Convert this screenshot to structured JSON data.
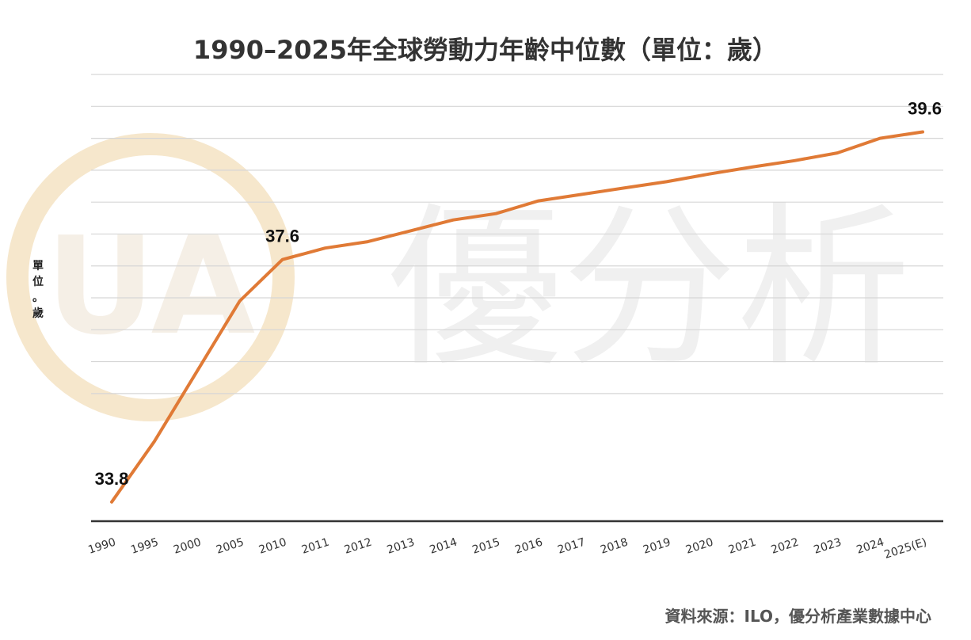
{
  "watermark": {
    "text": "優分析",
    "logo_letters": "UA"
  },
  "source_note": "資料來源：ILO，優分析產業數據中心",
  "chart_data": {
    "type": "line",
    "title": "1990–2025年全球勞動力年齡中位數（單位：歲）",
    "ylabel_chars": [
      "單",
      "位",
      "。",
      "歲"
    ],
    "xlabel": "",
    "categories": [
      "1990",
      "1995",
      "2000",
      "2005",
      "2010",
      "2011",
      "2012",
      "2013",
      "2014",
      "2015",
      "2016",
      "2017",
      "2018",
      "2019",
      "2020",
      "2021",
      "2022",
      "2023",
      "2024",
      "2025(E)"
    ],
    "series": [
      {
        "values": [
          33.8,
          34.75,
          35.85,
          36.95,
          37.6,
          37.78,
          37.88,
          38.05,
          38.22,
          38.32,
          38.52,
          38.62,
          38.72,
          38.82,
          38.94,
          39.05,
          39.15,
          39.27,
          39.5,
          39.6
        ],
        "color": "#e07a36"
      }
    ],
    "data_labels": [
      {
        "index": 0,
        "text": "33.8"
      },
      {
        "index": 4,
        "text": "37.6"
      },
      {
        "index": 19,
        "text": "39.6"
      }
    ],
    "ylim": [
      33.5,
      40.55
    ],
    "y_gridline_values": [
      40.5,
      40.0,
      39.5,
      39.0,
      38.5,
      38.0,
      37.5,
      37.0,
      36.5,
      36.0,
      35.5
    ],
    "y_tick_labels_shown": false,
    "grid": true,
    "colors": {
      "line": "#e07a36",
      "grid": "#d6d6d6",
      "axis": "#333333",
      "watermark_logo": "#f7ead2",
      "watermark_text": "#efefef"
    }
  }
}
